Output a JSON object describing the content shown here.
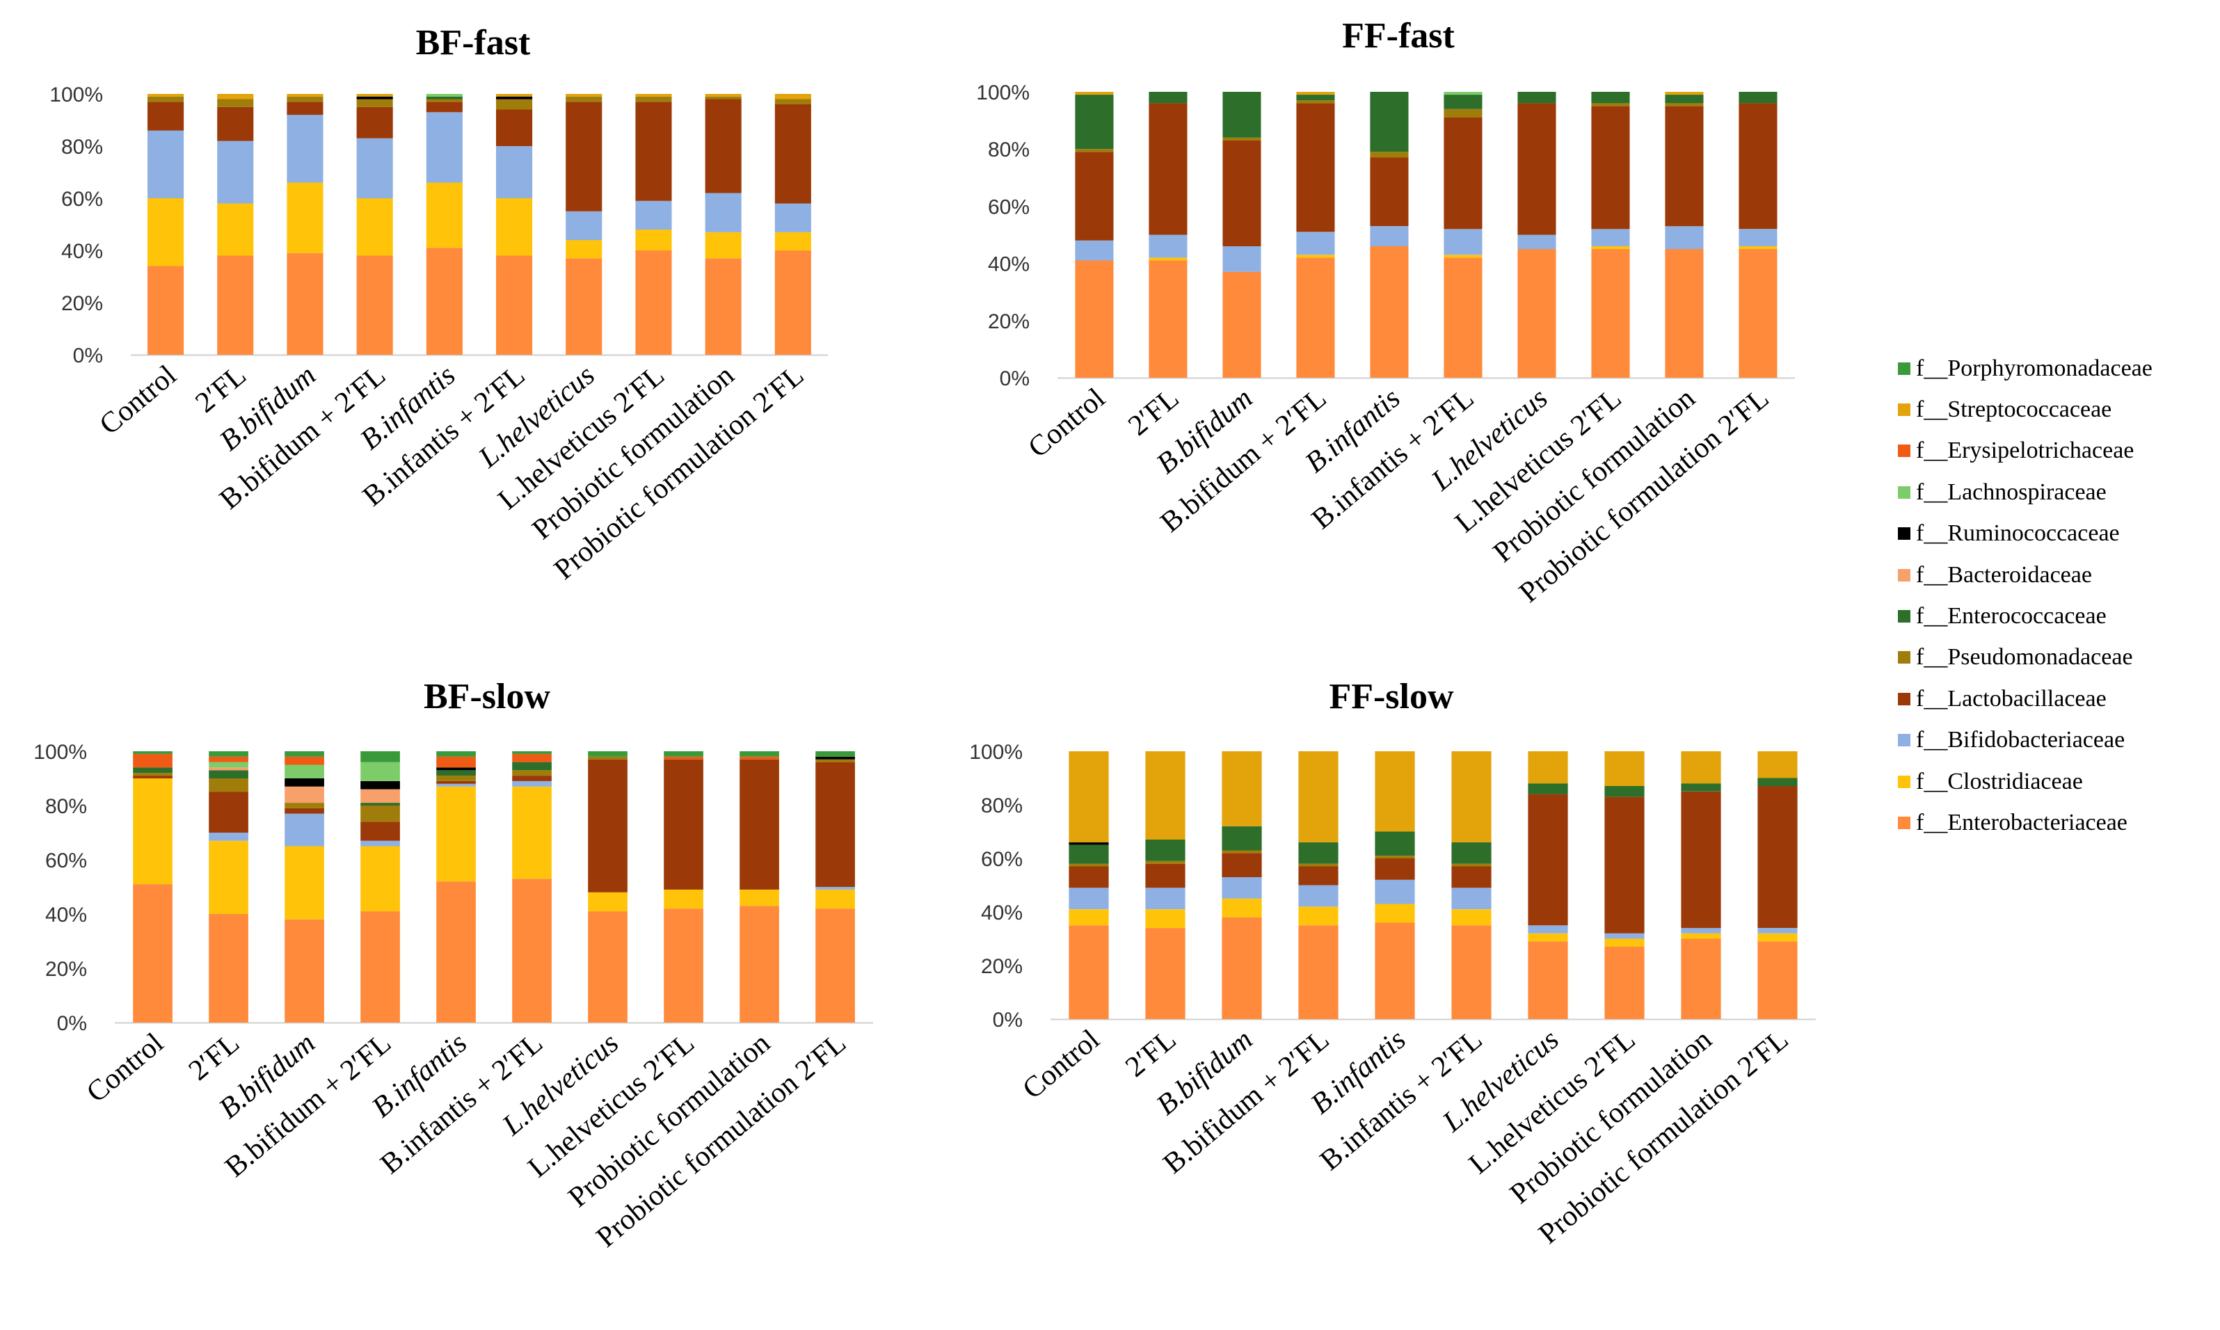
{
  "chart_data": [
    {
      "type": "bar",
      "stacked": true,
      "title": "BF-fast",
      "categories": [
        "Control",
        "2′FL",
        "B.bifidum",
        "B.bifidum + 2′FL",
        "B.infantis",
        "B.infantis + 2′FL",
        "L.helveticus",
        "L.helveticus 2′FL",
        "Probiotic formulation",
        "Probiotic formulation 2′FL"
      ],
      "ylim": [
        0,
        100
      ],
      "yticks": [
        "0%",
        "20%",
        "40%",
        "60%",
        "80%",
        "100%"
      ],
      "series": [
        {
          "name": "f__Enterobacteriaceae",
          "values": [
            34,
            38,
            39,
            38,
            41,
            38,
            37,
            40,
            37,
            40
          ]
        },
        {
          "name": "f__Clostridiaceae",
          "values": [
            26,
            20,
            27,
            22,
            25,
            22,
            7,
            8,
            10,
            7
          ]
        },
        {
          "name": "f__Bifidobacteriaceae",
          "values": [
            26,
            24,
            26,
            23,
            27,
            20,
            11,
            11,
            15,
            11
          ]
        },
        {
          "name": "f__Lactobacillaceae",
          "values": [
            11,
            13,
            5,
            12,
            4,
            14,
            42,
            38,
            36,
            38
          ]
        },
        {
          "name": "f__Pseudomonadaceae",
          "values": [
            2,
            3,
            2,
            3,
            1,
            4,
            2,
            2,
            1,
            2
          ]
        },
        {
          "name": "f__Enterococcaceae",
          "values": [
            0,
            0,
            0,
            0,
            1,
            0,
            0,
            0,
            0,
            0
          ]
        },
        {
          "name": "f__Bacteroidaceae",
          "values": [
            0,
            0,
            0,
            0,
            0,
            0,
            0,
            0,
            0,
            0
          ]
        },
        {
          "name": "f__Ruminococcaceae",
          "values": [
            0,
            0,
            0,
            1,
            0,
            1,
            0,
            0,
            0,
            0
          ]
        },
        {
          "name": "f__Lachnospiraceae",
          "values": [
            0,
            0,
            0,
            0,
            1,
            0,
            0,
            0,
            0,
            0
          ]
        },
        {
          "name": "f__Erysipelotrichaceae",
          "values": [
            0,
            0,
            0,
            0,
            0,
            0,
            0,
            0,
            0,
            0
          ]
        },
        {
          "name": "f__Streptococcaceae",
          "values": [
            1,
            2,
            1,
            1,
            0,
            1,
            1,
            1,
            1,
            2
          ]
        },
        {
          "name": "f__Porphyromonadaceae",
          "values": [
            0,
            0,
            0,
            0,
            0,
            0,
            0,
            0,
            0,
            0
          ]
        }
      ]
    },
    {
      "type": "bar",
      "stacked": true,
      "title": "FF-fast",
      "categories": [
        "Control",
        "2′FL",
        "B.bifidum",
        "B.bifidum + 2′FL",
        "B.infantis",
        "B.infantis + 2′FL",
        "L.helveticus",
        "L.helveticus 2′FL",
        "Probiotic formulation",
        "Probiotic formulation 2′FL"
      ],
      "ylim": [
        0,
        100
      ],
      "yticks": [
        "0%",
        "20%",
        "40%",
        "60%",
        "80%",
        "100%"
      ],
      "series": [
        {
          "name": "f__Enterobacteriaceae",
          "values": [
            41,
            41,
            37,
            42,
            46,
            42,
            45,
            45,
            45,
            45
          ]
        },
        {
          "name": "f__Clostridiaceae",
          "values": [
            0,
            1,
            0,
            1,
            0,
            1,
            0,
            1,
            0,
            1
          ]
        },
        {
          "name": "f__Bifidobacteriaceae",
          "values": [
            7,
            8,
            9,
            8,
            7,
            9,
            5,
            6,
            8,
            6
          ]
        },
        {
          "name": "f__Lactobacillaceae",
          "values": [
            31,
            46,
            37,
            45,
            24,
            39,
            46,
            43,
            42,
            44
          ]
        },
        {
          "name": "f__Pseudomonadaceae",
          "values": [
            1,
            0,
            1,
            1,
            2,
            3,
            0,
            1,
            1,
            0
          ]
        },
        {
          "name": "f__Enterococcaceae",
          "values": [
            19,
            4,
            16,
            2,
            21,
            5,
            4,
            4,
            3,
            4
          ]
        },
        {
          "name": "f__Bacteroidaceae",
          "values": [
            0,
            0,
            0,
            0,
            0,
            0,
            0,
            0,
            0,
            0
          ]
        },
        {
          "name": "f__Ruminococcaceae",
          "values": [
            0,
            0,
            0,
            0,
            0,
            0,
            0,
            0,
            0,
            0
          ]
        },
        {
          "name": "f__Lachnospiraceae",
          "values": [
            0,
            0,
            0,
            0,
            0,
            1,
            0,
            0,
            0,
            0
          ]
        },
        {
          "name": "f__Erysipelotrichaceae",
          "values": [
            0,
            0,
            0,
            0,
            0,
            0,
            0,
            0,
            0,
            0
          ]
        },
        {
          "name": "f__Streptococcaceae",
          "values": [
            1,
            0,
            0,
            1,
            0,
            0,
            0,
            0,
            1,
            0
          ]
        },
        {
          "name": "f__Porphyromonadaceae",
          "values": [
            0,
            0,
            0,
            0,
            0,
            0,
            0,
            0,
            0,
            0
          ]
        }
      ]
    },
    {
      "type": "bar",
      "stacked": true,
      "title": "BF-slow",
      "categories": [
        "Control",
        "2′FL",
        "B.bifidum",
        "B.bifidum + 2′FL",
        "B.infantis",
        "B.infantis + 2′FL",
        "L.helveticus",
        "L.helveticus 2′FL",
        "Probiotic formulation",
        "Probiotic formulation 2′FL"
      ],
      "ylim": [
        0,
        100
      ],
      "yticks": [
        "0%",
        "20%",
        "40%",
        "60%",
        "80%",
        "100%"
      ],
      "series": [
        {
          "name": "f__Enterobacteriaceae",
          "values": [
            51,
            40,
            38,
            41,
            52,
            53,
            41,
            42,
            43,
            42
          ]
        },
        {
          "name": "f__Clostridiaceae",
          "values": [
            39,
            27,
            27,
            24,
            35,
            34,
            7,
            7,
            6,
            7
          ]
        },
        {
          "name": "f__Bifidobacteriaceae",
          "values": [
            0,
            3,
            12,
            2,
            1,
            2,
            0,
            0,
            0,
            1
          ]
        },
        {
          "name": "f__Lactobacillaceae",
          "values": [
            1,
            15,
            2,
            7,
            1,
            2,
            49,
            48,
            48,
            46
          ]
        },
        {
          "name": "f__Pseudomonadaceae",
          "values": [
            1,
            5,
            2,
            6,
            2,
            2,
            1,
            0,
            0,
            1
          ]
        },
        {
          "name": "f__Enterococcaceae",
          "values": [
            2,
            3,
            0,
            1,
            2,
            3,
            0,
            0,
            0,
            0
          ]
        },
        {
          "name": "f__Bacteroidaceae",
          "values": [
            0,
            1,
            6,
            5,
            0,
            0,
            0,
            0,
            0,
            0
          ]
        },
        {
          "name": "f__Ruminococcaceae",
          "values": [
            0,
            0,
            3,
            3,
            1,
            0,
            0,
            0,
            0,
            1
          ]
        },
        {
          "name": "f__Lachnospiraceae",
          "values": [
            0,
            2,
            5,
            7,
            0,
            0,
            0,
            0,
            0,
            0
          ]
        },
        {
          "name": "f__Erysipelotrichaceae",
          "values": [
            5,
            2,
            3,
            0,
            4,
            3,
            0,
            1,
            1,
            0
          ]
        },
        {
          "name": "f__Streptococcaceae",
          "values": [
            0,
            0,
            0,
            0,
            0,
            0,
            0,
            0,
            0,
            0
          ]
        },
        {
          "name": "f__Porphyromonadaceae",
          "values": [
            1,
            2,
            2,
            4,
            2,
            1,
            2,
            2,
            2,
            2
          ]
        }
      ]
    },
    {
      "type": "bar",
      "stacked": true,
      "title": "FF-slow",
      "categories": [
        "Control",
        "2′FL",
        "B.bifidum",
        "B.bifidum + 2′FL",
        "B.infantis",
        "B.infantis + 2′FL",
        "L.helveticus",
        "L.helveticus 2′FL",
        "Probiotic formulation",
        "Probiotic formulation 2′FL"
      ],
      "ylim": [
        0,
        100
      ],
      "yticks": [
        "0%",
        "20%",
        "40%",
        "60%",
        "80%",
        "100%"
      ],
      "series": [
        {
          "name": "f__Enterobacteriaceae",
          "values": [
            35,
            34,
            38,
            35,
            36,
            35,
            29,
            27,
            30,
            29
          ]
        },
        {
          "name": "f__Clostridiaceae",
          "values": [
            6,
            7,
            7,
            7,
            7,
            6,
            3,
            3,
            2,
            3
          ]
        },
        {
          "name": "f__Bifidobacteriaceae",
          "values": [
            8,
            8,
            8,
            8,
            9,
            8,
            3,
            2,
            2,
            2
          ]
        },
        {
          "name": "f__Lactobacillaceae",
          "values": [
            8,
            9,
            9,
            7,
            8,
            8,
            49,
            51,
            51,
            53
          ]
        },
        {
          "name": "f__Pseudomonadaceae",
          "values": [
            1,
            1,
            1,
            1,
            1,
            1,
            0,
            0,
            0,
            0
          ]
        },
        {
          "name": "f__Enterococcaceae",
          "values": [
            7,
            8,
            9,
            8,
            9,
            8,
            4,
            4,
            3,
            3
          ]
        },
        {
          "name": "f__Bacteroidaceae",
          "values": [
            0,
            0,
            0,
            0,
            0,
            0,
            0,
            0,
            0,
            0
          ]
        },
        {
          "name": "f__Ruminococcaceae",
          "values": [
            1,
            0,
            0,
            0,
            0,
            0,
            0,
            0,
            0,
            0
          ]
        },
        {
          "name": "f__Lachnospiraceae",
          "values": [
            0,
            0,
            0,
            0,
            0,
            0,
            0,
            0,
            0,
            0
          ]
        },
        {
          "name": "f__Erysipelotrichaceae",
          "values": [
            0,
            0,
            0,
            0,
            0,
            0,
            0,
            0,
            0,
            0
          ]
        },
        {
          "name": "f__Streptococcaceae",
          "values": [
            34,
            33,
            28,
            34,
            30,
            34,
            12,
            13,
            12,
            10
          ]
        },
        {
          "name": "f__Porphyromonadaceae",
          "values": [
            0,
            0,
            0,
            0,
            0,
            0,
            0,
            0,
            0,
            0
          ]
        }
      ]
    }
  ],
  "legend": {
    "items": [
      {
        "label": "f__Porphyromonadaceae",
        "color": "#3a9a3a"
      },
      {
        "label": "f__Streptococcaceae",
        "color": "#e3a30a"
      },
      {
        "label": "f__Erysipelotrichaceae",
        "color": "#ef5b14"
      },
      {
        "label": "f__Lachnospiraceae",
        "color": "#7ccd6a"
      },
      {
        "label": "f__Ruminococcaceae",
        "color": "#000000"
      },
      {
        "label": "f__Bacteroidaceae",
        "color": "#f7a06a"
      },
      {
        "label": "f__Enterococcaceae",
        "color": "#2c6e2a"
      },
      {
        "label": "f__Pseudomonadaceae",
        "color": "#a07d0a"
      },
      {
        "label": "f__Lactobacillaceae",
        "color": "#9b3a08"
      },
      {
        "label": "f__Bifidobacteriaceae",
        "color": "#8fb0e3"
      },
      {
        "label": "f__Clostridiaceae",
        "color": "#ffc40a"
      },
      {
        "label": "f__Enterobacteriaceae",
        "color": "#ff8a3b"
      }
    ]
  },
  "colors": {
    "f__Porphyromonadaceae": "#3a9a3a",
    "f__Streptococcaceae": "#e3a30a",
    "f__Erysipelotrichaceae": "#ef5b14",
    "f__Lachnospiraceae": "#7ccd6a",
    "f__Ruminococcaceae": "#000000",
    "f__Bacteroidaceae": "#f7a06a",
    "f__Enterococcaceae": "#2c6e2a",
    "f__Pseudomonadaceae": "#a07d0a",
    "f__Lactobacillaceae": "#9b3a08",
    "f__Bifidobacteriaceae": "#8fb0e3",
    "f__Clostridiaceae": "#ffc40a",
    "f__Enterobacteriaceae": "#ff8a3b"
  }
}
